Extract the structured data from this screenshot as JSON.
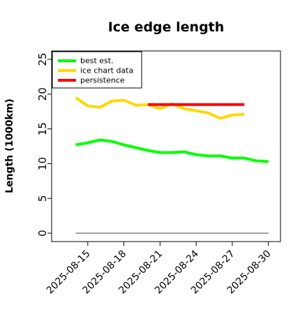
{
  "chart_data": {
    "type": "line",
    "title": "Ice edge length",
    "xlabel": "",
    "ylabel": "Length (1000km)",
    "ylim": [
      -1.2,
      26.2
    ],
    "yticks": [
      0,
      5,
      10,
      15,
      20,
      25
    ],
    "xlim": [
      "2025-08-12",
      "2025-08-31"
    ],
    "xticks": [
      "2025-08-15",
      "2025-08-18",
      "2025-08-21",
      "2025-08-24",
      "2025-08-27",
      "2025-08-30"
    ],
    "grid": false,
    "legend_position": "top-left",
    "series": [
      {
        "name": "best est.",
        "color": "#00ff00",
        "x": [
          "2025-08-14",
          "2025-08-15",
          "2025-08-16",
          "2025-08-17",
          "2025-08-18",
          "2025-08-19",
          "2025-08-20",
          "2025-08-21",
          "2025-08-22",
          "2025-08-23",
          "2025-08-24",
          "2025-08-25",
          "2025-08-26",
          "2025-08-27",
          "2025-08-28",
          "2025-08-29",
          "2025-08-30"
        ],
        "y": [
          12.7,
          13.0,
          13.4,
          13.2,
          12.7,
          12.3,
          11.9,
          11.6,
          11.6,
          11.7,
          11.3,
          11.1,
          11.1,
          10.8,
          10.8,
          10.4,
          10.3
        ]
      },
      {
        "name": "ice chart data",
        "color": "#ffd700",
        "x": [
          "2025-08-14",
          "2025-08-15",
          "2025-08-16",
          "2025-08-17",
          "2025-08-18",
          "2025-08-19",
          "2025-08-20",
          "2025-08-21",
          "2025-08-22",
          "2025-08-23",
          "2025-08-24",
          "2025-08-25",
          "2025-08-26",
          "2025-08-27",
          "2025-08-28"
        ],
        "y": [
          19.5,
          18.3,
          18.1,
          19.0,
          19.1,
          18.4,
          18.5,
          17.9,
          18.6,
          17.9,
          17.6,
          17.3,
          16.5,
          17.0,
          17.1
        ]
      },
      {
        "name": "persistence",
        "color": "#ff0000",
        "x": [
          "2025-08-20",
          "2025-08-28"
        ],
        "y": [
          18.5,
          18.5
        ]
      }
    ],
    "reference_line": {
      "y": 0,
      "x": [
        "2025-08-14",
        "2025-08-30"
      ],
      "color": "#808080"
    }
  }
}
